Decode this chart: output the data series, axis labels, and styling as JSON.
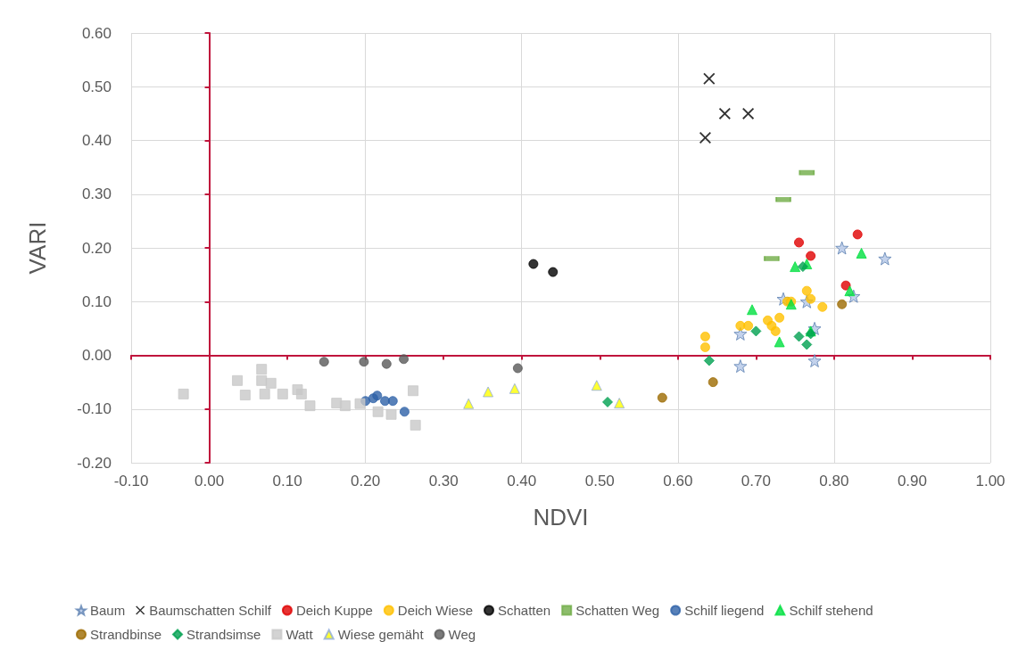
{
  "chart_data": {
    "type": "scatter",
    "xlabel": "NDVI",
    "ylabel": "VARI",
    "xlim": [
      -0.1,
      1.0
    ],
    "xticks": [
      {
        "value": -0.1,
        "label": "-0.10"
      },
      {
        "value": 0,
        "label": "0.00"
      },
      {
        "value": 0.1,
        "label": "0.10"
      },
      {
        "value": 0.2,
        "label": "0.20"
      },
      {
        "value": 0.3,
        "label": "0.30"
      },
      {
        "value": 0.4,
        "label": "0.40"
      },
      {
        "value": 0.5,
        "label": "0.50"
      },
      {
        "value": 0.6,
        "label": "0.60"
      },
      {
        "value": 0.7,
        "label": "0.70"
      },
      {
        "value": 0.8,
        "label": "0.80"
      },
      {
        "value": 0.9,
        "label": "0.90"
      },
      {
        "value": 1.0,
        "label": "1.00"
      }
    ],
    "ylim": [
      -0.2,
      0.6
    ],
    "yticks": [
      {
        "value": -0.2,
        "label": "-0.20"
      },
      {
        "value": -0.1,
        "label": "-0.10"
      },
      {
        "value": 0,
        "label": "0.00"
      },
      {
        "value": 0.1,
        "label": "0.10"
      },
      {
        "value": 0.2,
        "label": "0.20"
      },
      {
        "value": 0.3,
        "label": "0.30"
      },
      {
        "value": 0.4,
        "label": "0.40"
      },
      {
        "value": 0.5,
        "label": "0.50"
      },
      {
        "value": 0.6,
        "label": "0.60"
      }
    ],
    "grid": true,
    "legend": "bottom",
    "series": [
      {
        "name": "Baum",
        "color": "#b4c7e7",
        "marker": "star",
        "x": [
          0.68,
          0.68,
          0.735,
          0.765,
          0.775,
          0.775,
          0.81,
          0.825,
          0.865
        ],
        "values": [
          0.04,
          -0.02,
          0.105,
          0.1,
          0.05,
          -0.01,
          0.2,
          0.11,
          0.18
        ]
      },
      {
        "name": "Baumschatten Schilf",
        "color": "#000000",
        "marker": "cross",
        "x": [
          0.64,
          0.66,
          0.69,
          0.635
        ],
        "values": [
          0.515,
          0.45,
          0.45,
          0.405
        ]
      },
      {
        "name": "Deich Kuppe",
        "color": "#e00000",
        "marker": "circle",
        "x": [
          0.755,
          0.77,
          0.815,
          0.83
        ],
        "values": [
          0.21,
          0.185,
          0.13,
          0.225
        ]
      },
      {
        "name": "Deich Wiese",
        "color": "#ffc000",
        "marker": "circle",
        "x": [
          0.635,
          0.635,
          0.68,
          0.69,
          0.715,
          0.72,
          0.725,
          0.73,
          0.74,
          0.745,
          0.765,
          0.77,
          0.785
        ],
        "values": [
          0.035,
          0.015,
          0.055,
          0.055,
          0.065,
          0.055,
          0.045,
          0.07,
          0.1,
          0.1,
          0.12,
          0.105,
          0.09
        ]
      },
      {
        "name": "Schatten",
        "color": "#000000",
        "marker": "circle",
        "x": [
          0.415,
          0.44
        ],
        "values": [
          0.17,
          0.155
        ]
      },
      {
        "name": "Schatten Weg",
        "color": "#70ad47",
        "marker": "square",
        "x": [
          0.72,
          0.735,
          0.765
        ],
        "values": [
          0.18,
          0.29,
          0.34
        ]
      },
      {
        "name": "Schilf liegend",
        "color": "#2e62a8",
        "marker": "circle",
        "x": [
          0.2,
          0.21,
          0.215,
          0.225,
          0.235,
          0.25
        ],
        "values": [
          -0.085,
          -0.08,
          -0.075,
          -0.085,
          -0.085,
          -0.105
        ]
      },
      {
        "name": "Schilf stehend",
        "color": "#00e040",
        "marker": "triangle",
        "x": [
          0.695,
          0.73,
          0.75,
          0.745,
          0.765,
          0.77,
          0.82,
          0.835
        ],
        "values": [
          0.085,
          0.025,
          0.165,
          0.095,
          0.17,
          0.045,
          0.12,
          0.19
        ]
      },
      {
        "name": "Strandbinse",
        "color": "#9c6a00",
        "marker": "circle",
        "x": [
          0.58,
          0.645,
          0.81
        ],
        "values": [
          -0.079,
          -0.05,
          0.095
        ]
      },
      {
        "name": "Strandsimse",
        "color": "#00a050",
        "marker": "diamond",
        "x": [
          0.51,
          0.64,
          0.7,
          0.755,
          0.76,
          0.765,
          0.77
        ],
        "values": [
          -0.087,
          -0.01,
          0.045,
          0.035,
          0.165,
          0.02,
          0.04
        ]
      },
      {
        "name": "Watt",
        "color": "#c8c8c8",
        "marker": "square",
        "x": [
          -0.033,
          0.036,
          0.067,
          0.046,
          0.067,
          0.079,
          0.071,
          0.094,
          0.113,
          0.118,
          0.129,
          0.163,
          0.174,
          0.193,
          0.216,
          0.233,
          0.261,
          0.264
        ],
        "values": [
          -0.072,
          -0.047,
          -0.026,
          -0.074,
          -0.047,
          -0.052,
          -0.072,
          -0.072,
          -0.064,
          -0.072,
          -0.094,
          -0.089,
          -0.094,
          -0.09,
          -0.105,
          -0.11,
          -0.066,
          -0.13
        ]
      },
      {
        "name": "Wiese gemäht",
        "color": "#ffff00",
        "marker": "triangle",
        "x": [
          0.332,
          0.357,
          0.391,
          0.496,
          0.525
        ],
        "values": [
          -0.09,
          -0.068,
          -0.062,
          -0.056,
          -0.089
        ]
      },
      {
        "name": "Weg",
        "color": "#595959",
        "marker": "circle",
        "x": [
          0.147,
          0.198,
          0.227,
          0.249,
          0.395
        ],
        "values": [
          -0.012,
          -0.012,
          -0.016,
          -0.007,
          -0.024
        ]
      }
    ]
  }
}
